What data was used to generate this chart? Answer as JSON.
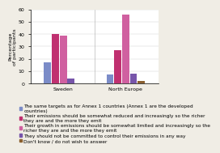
{
  "categories": [
    "Sweden",
    "North Europe"
  ],
  "series": [
    {
      "label": "The same targets as for Annex 1 countries (Annex 1 are the developed\ncountries)",
      "color": "#7b8cc8",
      "values": [
        17,
        7
      ]
    },
    {
      "label": "Their emissions should be somewhat reduced and increasingly so the richer\nthey are and the more they emit",
      "color": "#c03070",
      "values": [
        40,
        27
      ]
    },
    {
      "label": "Their growth in emissions should be somewhat limited and increasingly so the\nricher they are and the more they emit",
      "color": "#d060a0",
      "values": [
        39,
        56
      ]
    },
    {
      "label": "They should not be committed to control their emissions in any way",
      "color": "#7755aa",
      "values": [
        4,
        8
      ]
    },
    {
      "label": "Don't know / do not wish to answer",
      "color": "#8b6030",
      "values": [
        0,
        2
      ]
    }
  ],
  "ylabel": "Percentage\nof participants",
  "ylim": [
    0,
    60
  ],
  "yticks": [
    0,
    10,
    20,
    30,
    40,
    50,
    60
  ],
  "bar_width": 0.055,
  "legend_fontsize": 4.2,
  "axis_fontsize": 4.5,
  "tick_fontsize": 4.5,
  "bg_color": "#f0ede5",
  "plot_bg": "#ffffff"
}
